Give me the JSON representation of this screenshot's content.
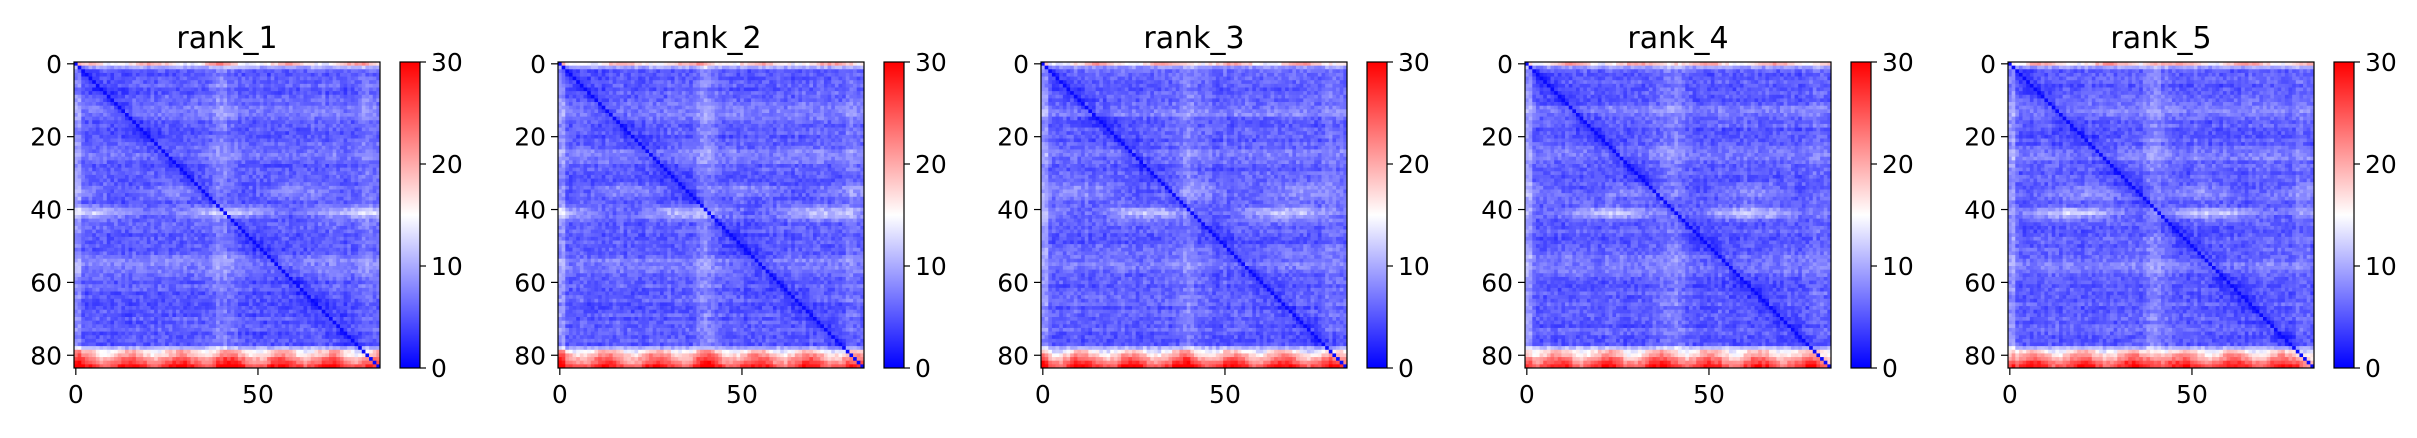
{
  "chart_data": {
    "type": "heatmap",
    "matrix_size": 84,
    "colormap": [
      "#0000ff",
      "#ffffff",
      "#ff0000"
    ],
    "color_range": [
      0,
      30
    ],
    "colorbar_ticks": [
      "0",
      "10",
      "20",
      "30"
    ],
    "colorbar_tick_values": [
      0,
      10,
      20,
      30
    ],
    "x_tick_labels": [
      "0",
      "50"
    ],
    "x_tick_values": [
      0,
      50
    ],
    "y_tick_labels": [
      "0",
      "20",
      "40",
      "60",
      "80"
    ],
    "y_tick_values": [
      0,
      20,
      40,
      60,
      80
    ],
    "panels": [
      {
        "title": "rank_1"
      },
      {
        "title": "rank_2"
      },
      {
        "title": "rank_3"
      },
      {
        "title": "rank_4"
      },
      {
        "title": "rank_5"
      }
    ]
  }
}
